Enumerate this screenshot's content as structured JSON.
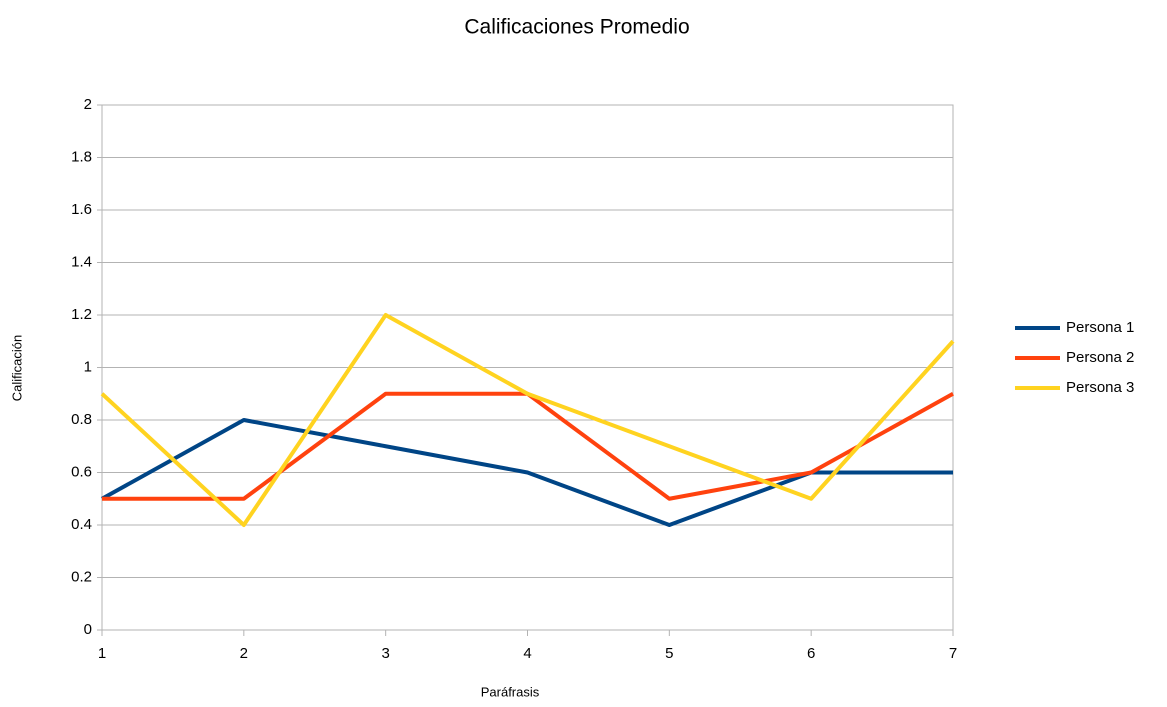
{
  "chart_data": {
    "type": "line",
    "title": "Calificaciones Promedio",
    "x_label": "Paráfrasis",
    "y_label": "Calificación",
    "x": [
      1,
      2,
      3,
      4,
      5,
      6,
      7
    ],
    "series": [
      {
        "name": "Persona 1",
        "color": "#004586",
        "values": [
          0.5,
          0.8,
          0.7,
          0.6,
          0.4,
          0.6,
          0.6
        ]
      },
      {
        "name": "Persona 2",
        "color": "#ff420e",
        "values": [
          0.5,
          0.5,
          0.9,
          0.9,
          0.5,
          0.6,
          0.9
        ]
      },
      {
        "name": "Persona 3",
        "color": "#ffd320",
        "values": [
          0.9,
          0.4,
          1.2,
          0.9,
          0.7,
          0.5,
          1.1
        ]
      }
    ],
    "xlim": [
      1,
      7
    ],
    "xticks": [
      1,
      2,
      3,
      4,
      5,
      6,
      7
    ],
    "ylim": [
      0,
      2
    ],
    "yticks": [
      0,
      0.2,
      0.4,
      0.6,
      0.8,
      1,
      1.2,
      1.4,
      1.6,
      1.8,
      2
    ],
    "grid": true,
    "legend": "right"
  }
}
